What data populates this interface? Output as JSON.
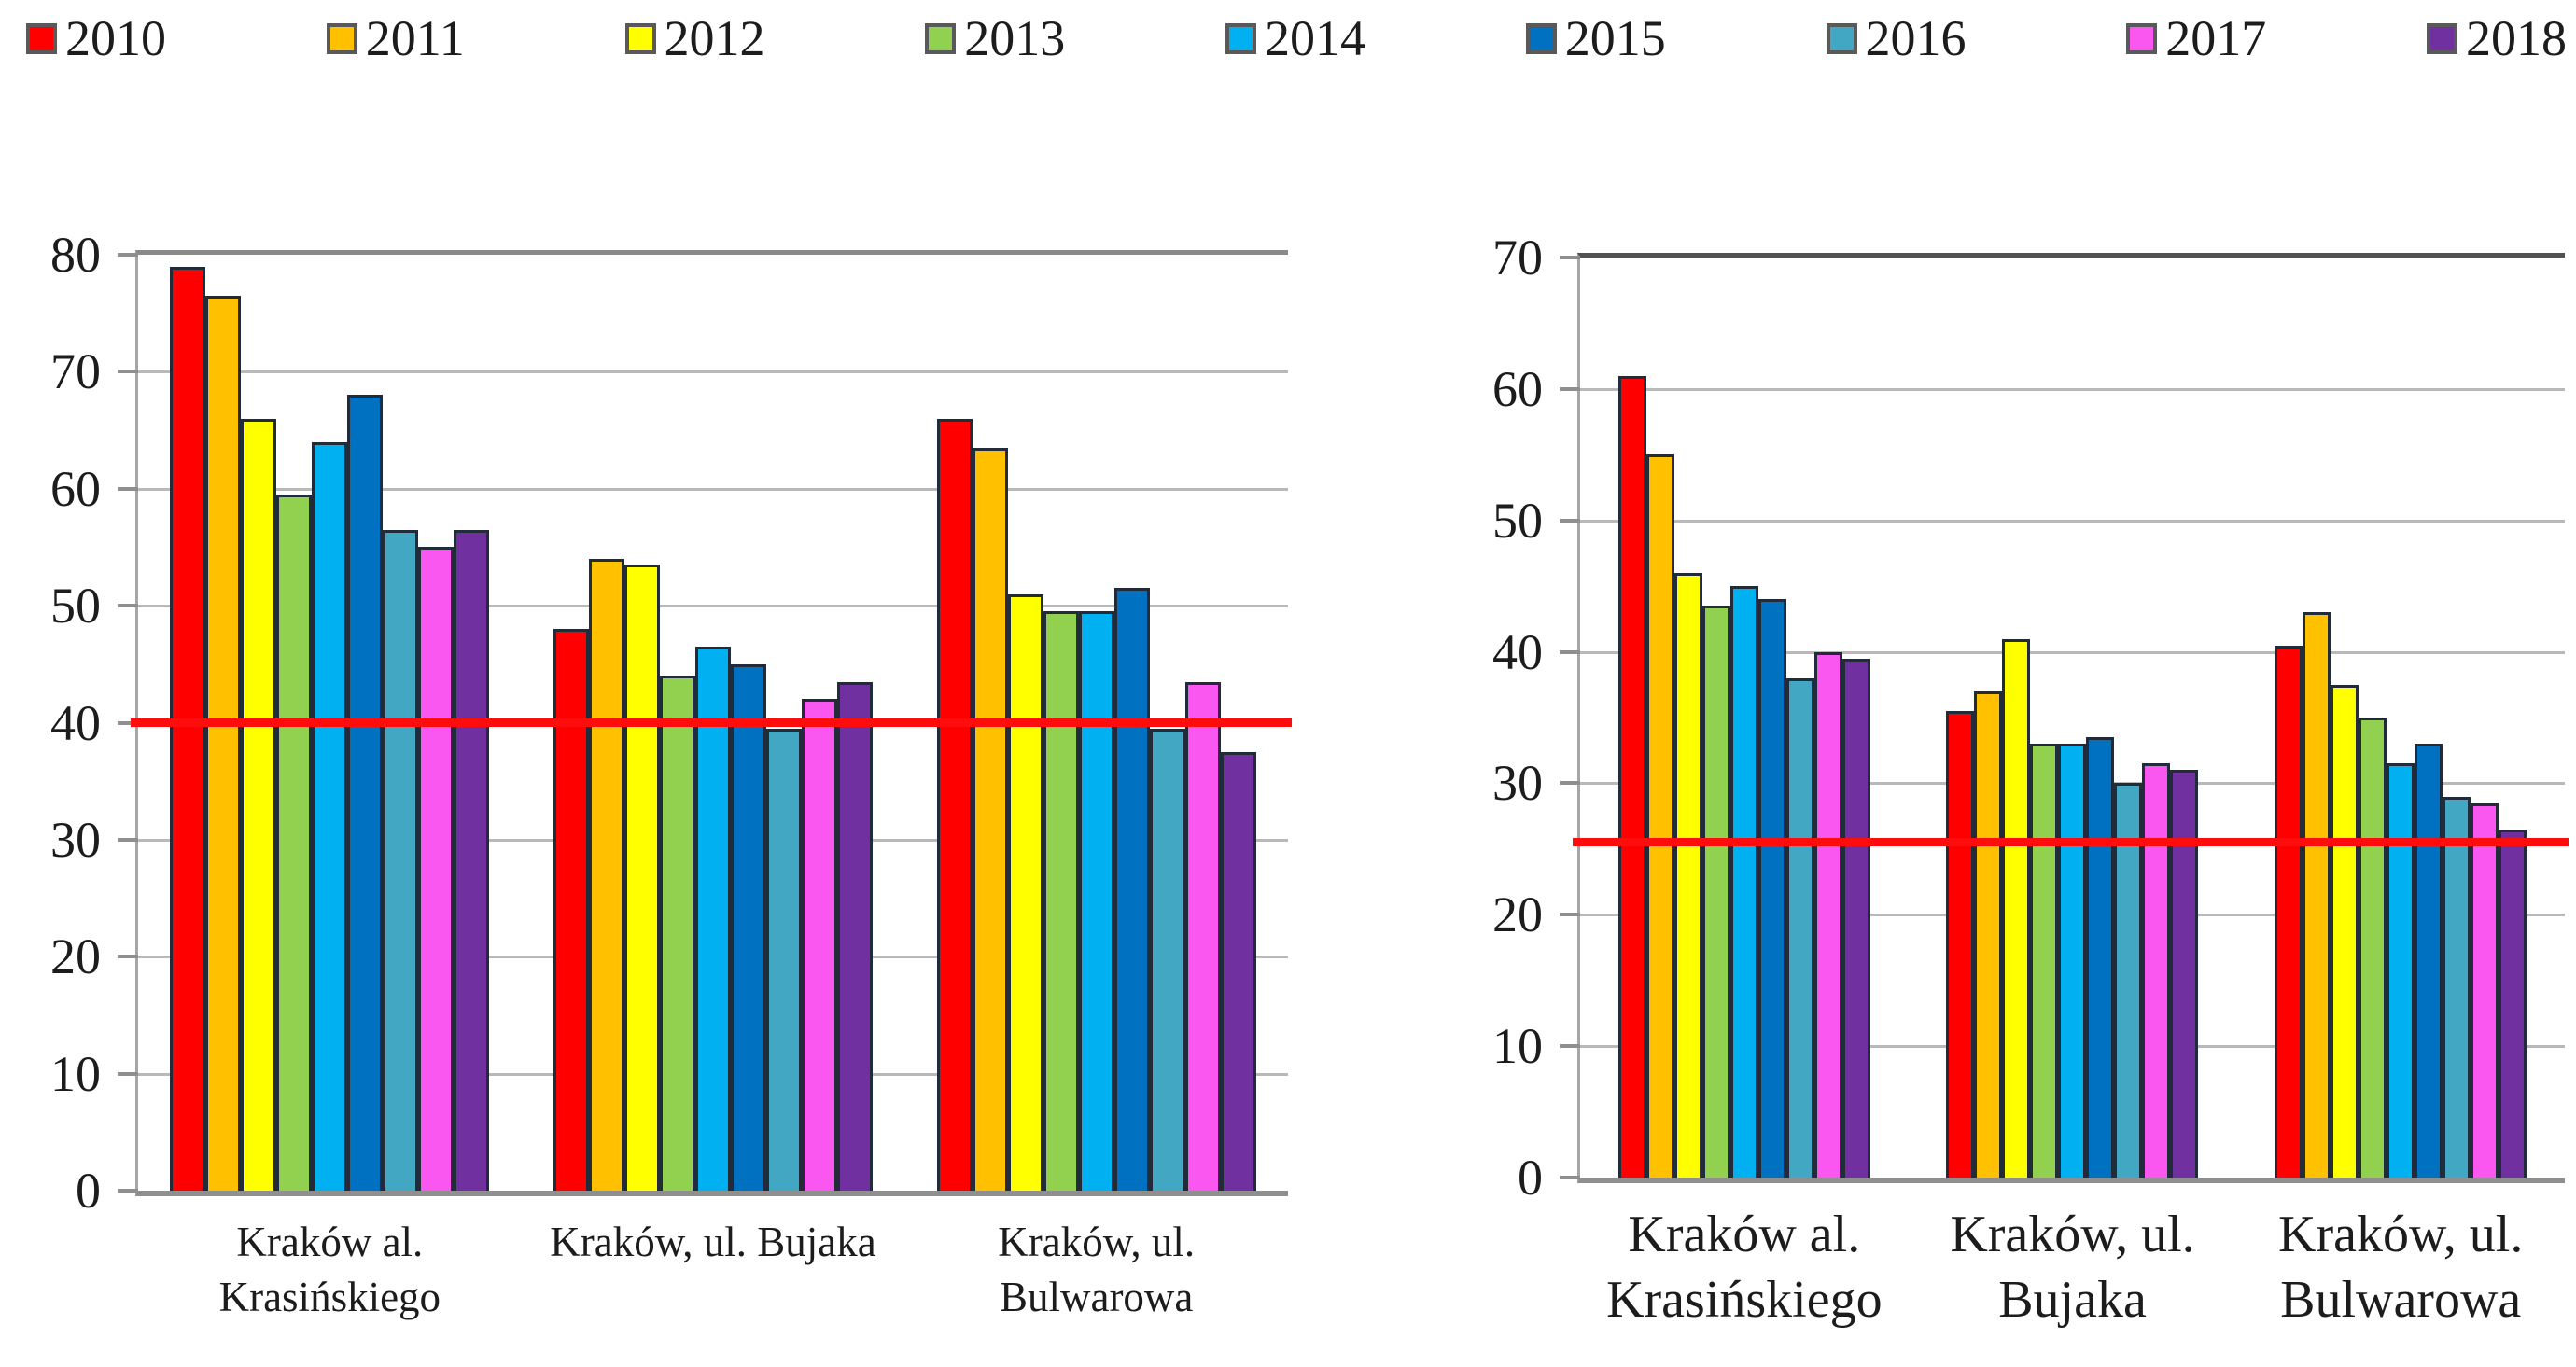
{
  "legend": {
    "items": [
      {
        "label": "2010",
        "color": "#FE0000"
      },
      {
        "label": "2011",
        "color": "#FFC000"
      },
      {
        "label": "2012",
        "color": "#FFFF00"
      },
      {
        "label": "2013",
        "color": "#92D050"
      },
      {
        "label": "2014",
        "color": "#00B0F0"
      },
      {
        "label": "2015",
        "color": "#0070C0"
      },
      {
        "label": "2016",
        "color": "#41A7C2"
      },
      {
        "label": "2017",
        "color": "#F957EF"
      },
      {
        "label": "2018",
        "color": "#7030A0"
      }
    ]
  },
  "chart_data": [
    {
      "type": "bar",
      "title": "",
      "categories": [
        "Kraków al.\nKrasińskiego",
        "Kraków, ul. Bujaka",
        "Kraków, ul.\nBulwarowa"
      ],
      "series": [
        {
          "name": "2010",
          "color": "#FE0000",
          "values": [
            79,
            48,
            66
          ]
        },
        {
          "name": "2011",
          "color": "#FFC000",
          "values": [
            76.5,
            54,
            63.5
          ]
        },
        {
          "name": "2012",
          "color": "#FFFF00",
          "values": [
            66,
            53.5,
            51
          ]
        },
        {
          "name": "2013",
          "color": "#92D050",
          "values": [
            59.5,
            44,
            49.5
          ]
        },
        {
          "name": "2014",
          "color": "#00B0F0",
          "values": [
            64,
            46.5,
            49.5
          ]
        },
        {
          "name": "2015",
          "color": "#0070C0",
          "values": [
            68,
            45,
            51.5
          ]
        },
        {
          "name": "2016",
          "color": "#41A7C2",
          "values": [
            56.5,
            39.5,
            39.5
          ]
        },
        {
          "name": "2017",
          "color": "#F957EF",
          "values": [
            55,
            42,
            43.5
          ]
        },
        {
          "name": "2018",
          "color": "#7030A0",
          "values": [
            56.5,
            43.5,
            37.5
          ]
        }
      ],
      "ylim": [
        0,
        80
      ],
      "ytick_step": 10,
      "yticks": [
        0,
        10,
        20,
        30,
        40,
        50,
        60,
        70,
        80
      ],
      "limit_line": {
        "value": 40,
        "color": "#FF0D0D"
      },
      "grid": true,
      "legend_position": "top-shared"
    },
    {
      "type": "bar",
      "title": "",
      "categories": [
        "Kraków al.\nKrasińskiego",
        "Kraków, ul.\nBujaka",
        "Kraków, ul.\nBulwarowa"
      ],
      "series": [
        {
          "name": "2010",
          "color": "#FE0000",
          "values": [
            61,
            35.5,
            40.5
          ]
        },
        {
          "name": "2011",
          "color": "#FFC000",
          "values": [
            55,
            37,
            43
          ]
        },
        {
          "name": "2012",
          "color": "#FFFF00",
          "values": [
            46,
            41,
            37.5
          ]
        },
        {
          "name": "2013",
          "color": "#92D050",
          "values": [
            43.5,
            33,
            35
          ]
        },
        {
          "name": "2014",
          "color": "#00B0F0",
          "values": [
            45,
            33,
            31.5
          ]
        },
        {
          "name": "2015",
          "color": "#0070C0",
          "values": [
            44,
            33.5,
            33
          ]
        },
        {
          "name": "2016",
          "color": "#41A7C2",
          "values": [
            38,
            30,
            29
          ]
        },
        {
          "name": "2017",
          "color": "#F957EF",
          "values": [
            40,
            31.5,
            28.5
          ]
        },
        {
          "name": "2018",
          "color": "#7030A0",
          "values": [
            39.5,
            31,
            26.5
          ]
        }
      ],
      "ylim": [
        0,
        70
      ],
      "ytick_step": 10,
      "yticks": [
        0,
        10,
        20,
        30,
        40,
        50,
        60,
        70
      ],
      "limit_line": {
        "value": 25.5,
        "color": "#FF0D0D"
      },
      "grid": true,
      "legend_position": "top-shared"
    }
  ]
}
